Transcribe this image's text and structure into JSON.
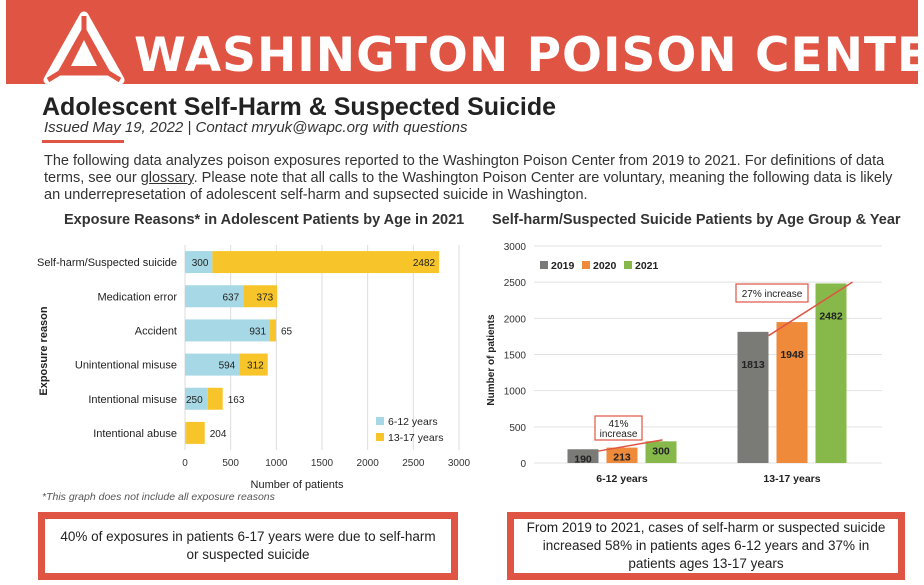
{
  "header": {
    "brand": "WASHINGTON POISON CENTER",
    "title": "Adolescent Self-Harm & Suspected Suicide",
    "issued": "Issued May 19, 2022  |   Contact mryuk@wapc.org with questions",
    "intro_before_link": "The following data analyzes poison exposures reported to the Washington Poison Center from 2019 to 2021. For definitions of data terms, see our ",
    "intro_link": "glossary",
    "intro_after_link": ". Please note that all calls to the Washington Poison Center are voluntary, meaning the following data is likely an underrepresetation of adolescent self-harm and supsected suicide in Washington.",
    "colors": {
      "banner": "#e05443",
      "accent": "#e05443"
    }
  },
  "chart_data": [
    {
      "type": "bar",
      "orientation": "horizontal",
      "stacked": true,
      "title": "Exposure Reasons* in Adolescent Patients by Age in 2021",
      "xlabel": "Number of patients",
      "ylabel": "Exposure reason",
      "xlim": [
        0,
        3000
      ],
      "xticks": [
        0,
        500,
        1000,
        1500,
        2000,
        2500,
        3000
      ],
      "categories": [
        "Self-harm/Suspected suicide",
        "Medication error",
        "Accident",
        "Unintentional misuse",
        "Intentional misuse",
        "Intentional abuse"
      ],
      "series": [
        {
          "name": "6-12 years",
          "color": "#a6d8e5",
          "values": [
            300,
            637,
            931,
            594,
            250,
            12
          ]
        },
        {
          "name": "13-17 years",
          "color": "#f7c52a",
          "values": [
            2482,
            373,
            65,
            312,
            163,
            204
          ]
        }
      ],
      "legend": "bottom-right",
      "grid": true,
      "footnote": "*This graph does not include all exposure reasons"
    },
    {
      "type": "bar",
      "title": "Self-harm/Suspected Suicide Patients by Age Group & Year",
      "xlabel": "",
      "ylabel": "Number of patients",
      "ylim": [
        0,
        3000
      ],
      "yticks": [
        0,
        500,
        1000,
        1500,
        2000,
        2500,
        3000
      ],
      "categories": [
        "6-12 years",
        "13-17 years"
      ],
      "series": [
        {
          "name": "2019",
          "color": "#7a7a77",
          "values": [
            190,
            1813
          ]
        },
        {
          "name": "2020",
          "color": "#ee8a3a",
          "values": [
            213,
            1948
          ]
        },
        {
          "name": "2021",
          "color": "#86b94a",
          "values": [
            300,
            2482
          ]
        }
      ],
      "legend": "top-left",
      "grid": true,
      "annotations": [
        {
          "text_line1": "41%",
          "text_line2": "increase",
          "category": "6-12 years"
        },
        {
          "text": "27% increase",
          "category": "13-17 years"
        }
      ]
    }
  ],
  "callouts": {
    "left": "40% of exposures in patients 6-17 years were due to self-harm or suspected suicide",
    "right": "From 2019 to 2021, cases of self-harm or suspected suicide increased 58% in patients ages 6-12 years and 37% in patients ages 13-17 years"
  }
}
